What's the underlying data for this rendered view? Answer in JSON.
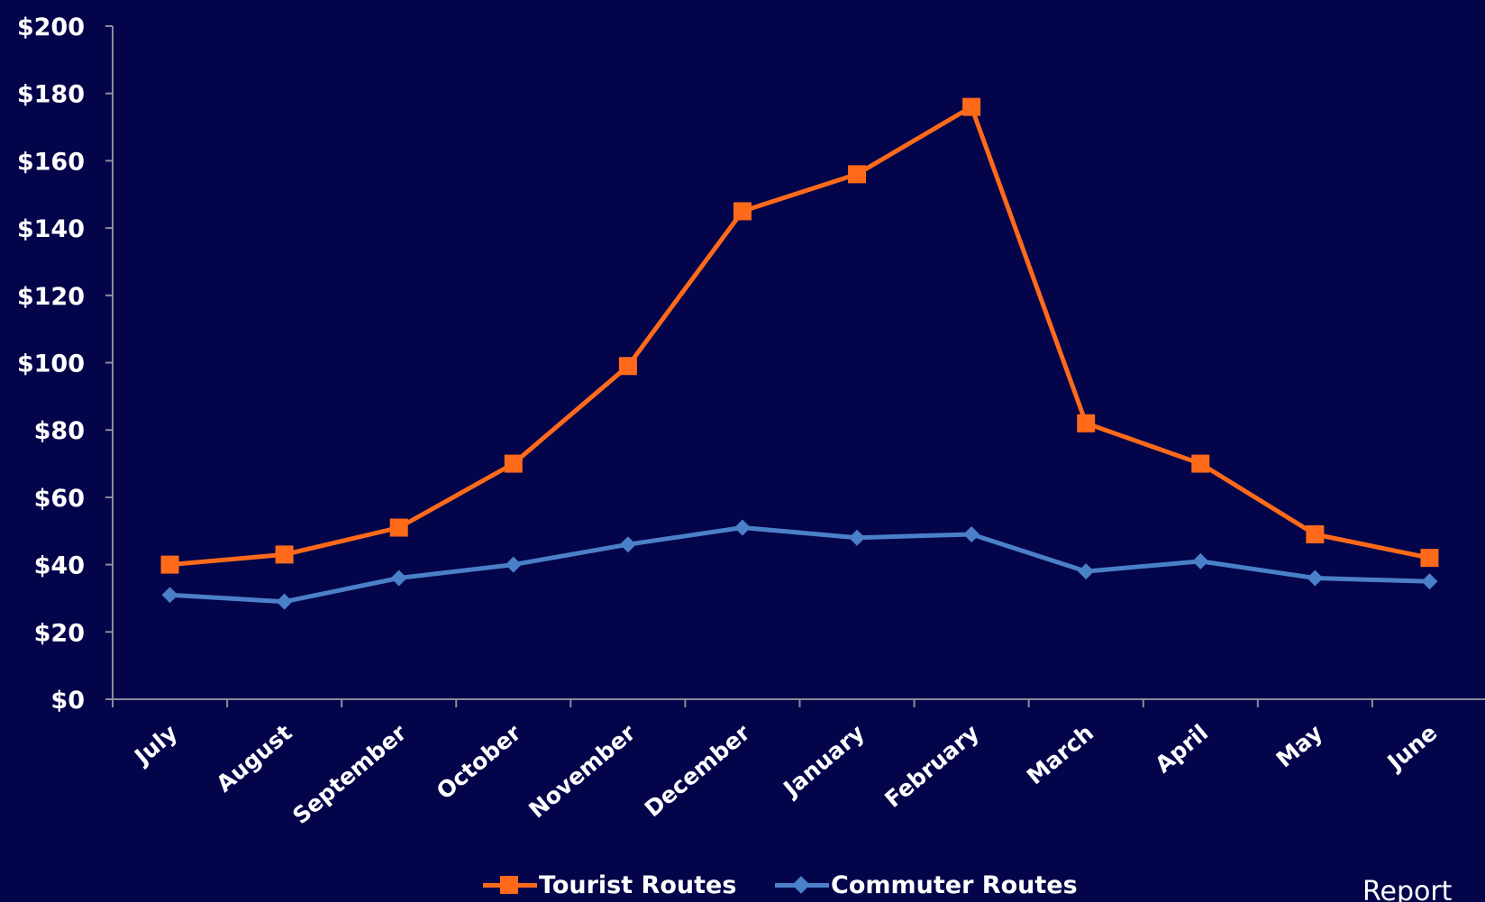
{
  "chart_data": {
    "type": "line",
    "categories": [
      "July",
      "August",
      "September",
      "October",
      "November",
      "December",
      "January",
      "February",
      "March",
      "April",
      "May",
      "June"
    ],
    "series": [
      {
        "name": "Tourist Routes",
        "values": [
          40,
          43,
          51,
          70,
          99,
          145,
          156,
          176,
          82,
          70,
          49,
          42
        ],
        "color": "#ff6a1a",
        "marker": "square"
      },
      {
        "name": "Commuter Routes",
        "values": [
          31,
          29,
          36,
          40,
          46,
          51,
          48,
          49,
          38,
          41,
          36,
          35
        ],
        "color": "#4a80c8",
        "marker": "diamond"
      }
    ],
    "yticks": [
      "$0",
      "$20",
      "$40",
      "$60",
      "$80",
      "$100",
      "$120",
      "$140",
      "$160",
      "$180",
      "$200"
    ],
    "ylim": [
      0,
      200
    ],
    "title": "",
    "xlabel": "",
    "ylabel": "",
    "grid": false,
    "legend_position": "bottom",
    "axis_color": "#8c8c9c",
    "background": "#03044a"
  },
  "corner_text": "Report"
}
